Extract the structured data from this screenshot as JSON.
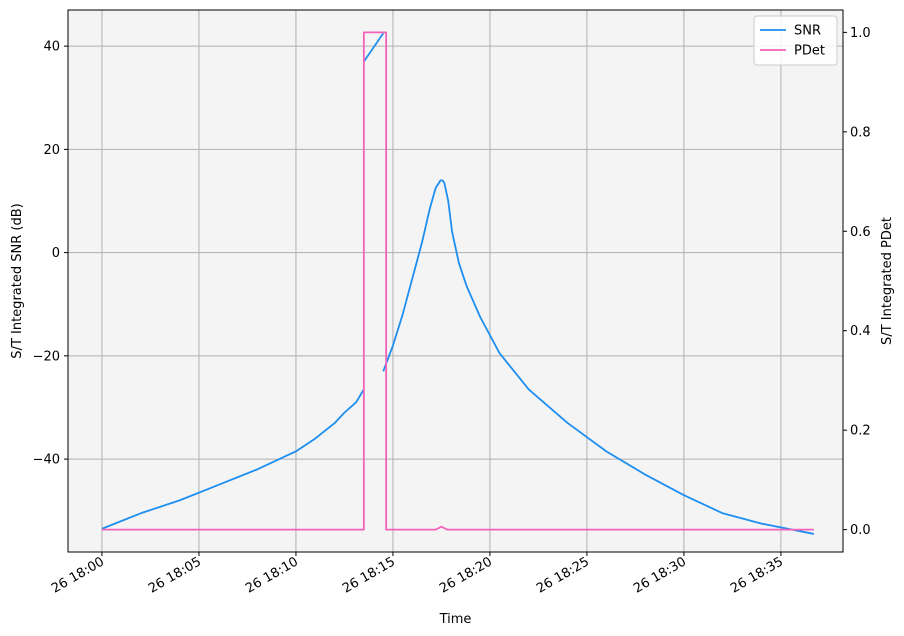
{
  "chart_data": {
    "type": "line",
    "title": "",
    "xlabel": "Time",
    "ylabel_left": "S/T Integrated SNR (dB)",
    "ylabel_right": "S/T Integrated PDet",
    "x_unit": "minutes after 26 18:00",
    "xlim": [
      -1.75,
      38.2
    ],
    "ylim_left": [
      -58.0,
      47.0
    ],
    "ylim_right": [
      -0.045,
      1.045
    ],
    "x_ticks": [
      {
        "value": 0,
        "label": "26 18:00"
      },
      {
        "value": 5,
        "label": "26 18:05"
      },
      {
        "value": 10,
        "label": "26 18:10"
      },
      {
        "value": 15,
        "label": "26 18:15"
      },
      {
        "value": 20,
        "label": "26 18:20"
      },
      {
        "value": 25,
        "label": "26 18:25"
      },
      {
        "value": 30,
        "label": "26 18:30"
      },
      {
        "value": 35,
        "label": "26 18:35"
      }
    ],
    "y_ticks_left": [
      {
        "value": 40,
        "label": "40"
      },
      {
        "value": 20,
        "label": "20"
      },
      {
        "value": 0,
        "label": "0"
      },
      {
        "value": -20,
        "label": "−20"
      },
      {
        "value": -40,
        "label": "−40"
      }
    ],
    "y_ticks_right": [
      {
        "value": 0.0,
        "label": "0.0"
      },
      {
        "value": 0.2,
        "label": "0.2"
      },
      {
        "value": 0.4,
        "label": "0.4"
      },
      {
        "value": 0.6,
        "label": "0.6"
      },
      {
        "value": 0.8,
        "label": "0.8"
      },
      {
        "value": 1.0,
        "label": "1.0"
      }
    ],
    "grid": true,
    "legend_position": "top-right",
    "series": [
      {
        "name": "SNR",
        "axis": "left",
        "color": "#1e8ff0",
        "segments": [
          {
            "x": [
              0,
              2,
              4,
              6,
              8,
              10,
              11,
              12,
              12.5,
              13.1,
              13.5
            ],
            "y": [
              -53.5,
              -50.5,
              -48.0,
              -45.0,
              -42.0,
              -38.5,
              -36.0,
              -33.0,
              -31.0,
              -29.0,
              -26.5
            ]
          },
          {
            "x": [
              13.5,
              14.5
            ],
            "y": [
              37.0,
              42.5
            ]
          },
          {
            "x": [
              14.5,
              15.0,
              15.5,
              16.0,
              16.5,
              16.9,
              17.2,
              17.45,
              17.55,
              17.65,
              17.85,
              18.05,
              18.4,
              18.8,
              19.5,
              20.5,
              22.0,
              24.0,
              26.0,
              28.0,
              30.0,
              32.0,
              34.0,
              36.7
            ],
            "y": [
              -23.0,
              -18.0,
              -12.0,
              -5.0,
              2.0,
              8.5,
              12.5,
              14.0,
              14.0,
              13.5,
              10.0,
              4.0,
              -2.0,
              -6.5,
              -12.5,
              -19.5,
              -26.5,
              -33.0,
              -38.5,
              -43.0,
              -47.0,
              -50.5,
              -52.5,
              -54.5
            ]
          }
        ]
      },
      {
        "name": "PDet",
        "axis": "right",
        "color": "#f561b9",
        "segments": [
          {
            "x": [
              0,
              13.5,
              13.5,
              14.65,
              14.65,
              17.2,
              17.5,
              17.8,
              36.7
            ],
            "y": [
              0.0,
              0.0,
              1.0,
              1.0,
              0.0,
              0.0,
              0.006,
              0.0,
              0.0
            ]
          }
        ]
      }
    ]
  }
}
